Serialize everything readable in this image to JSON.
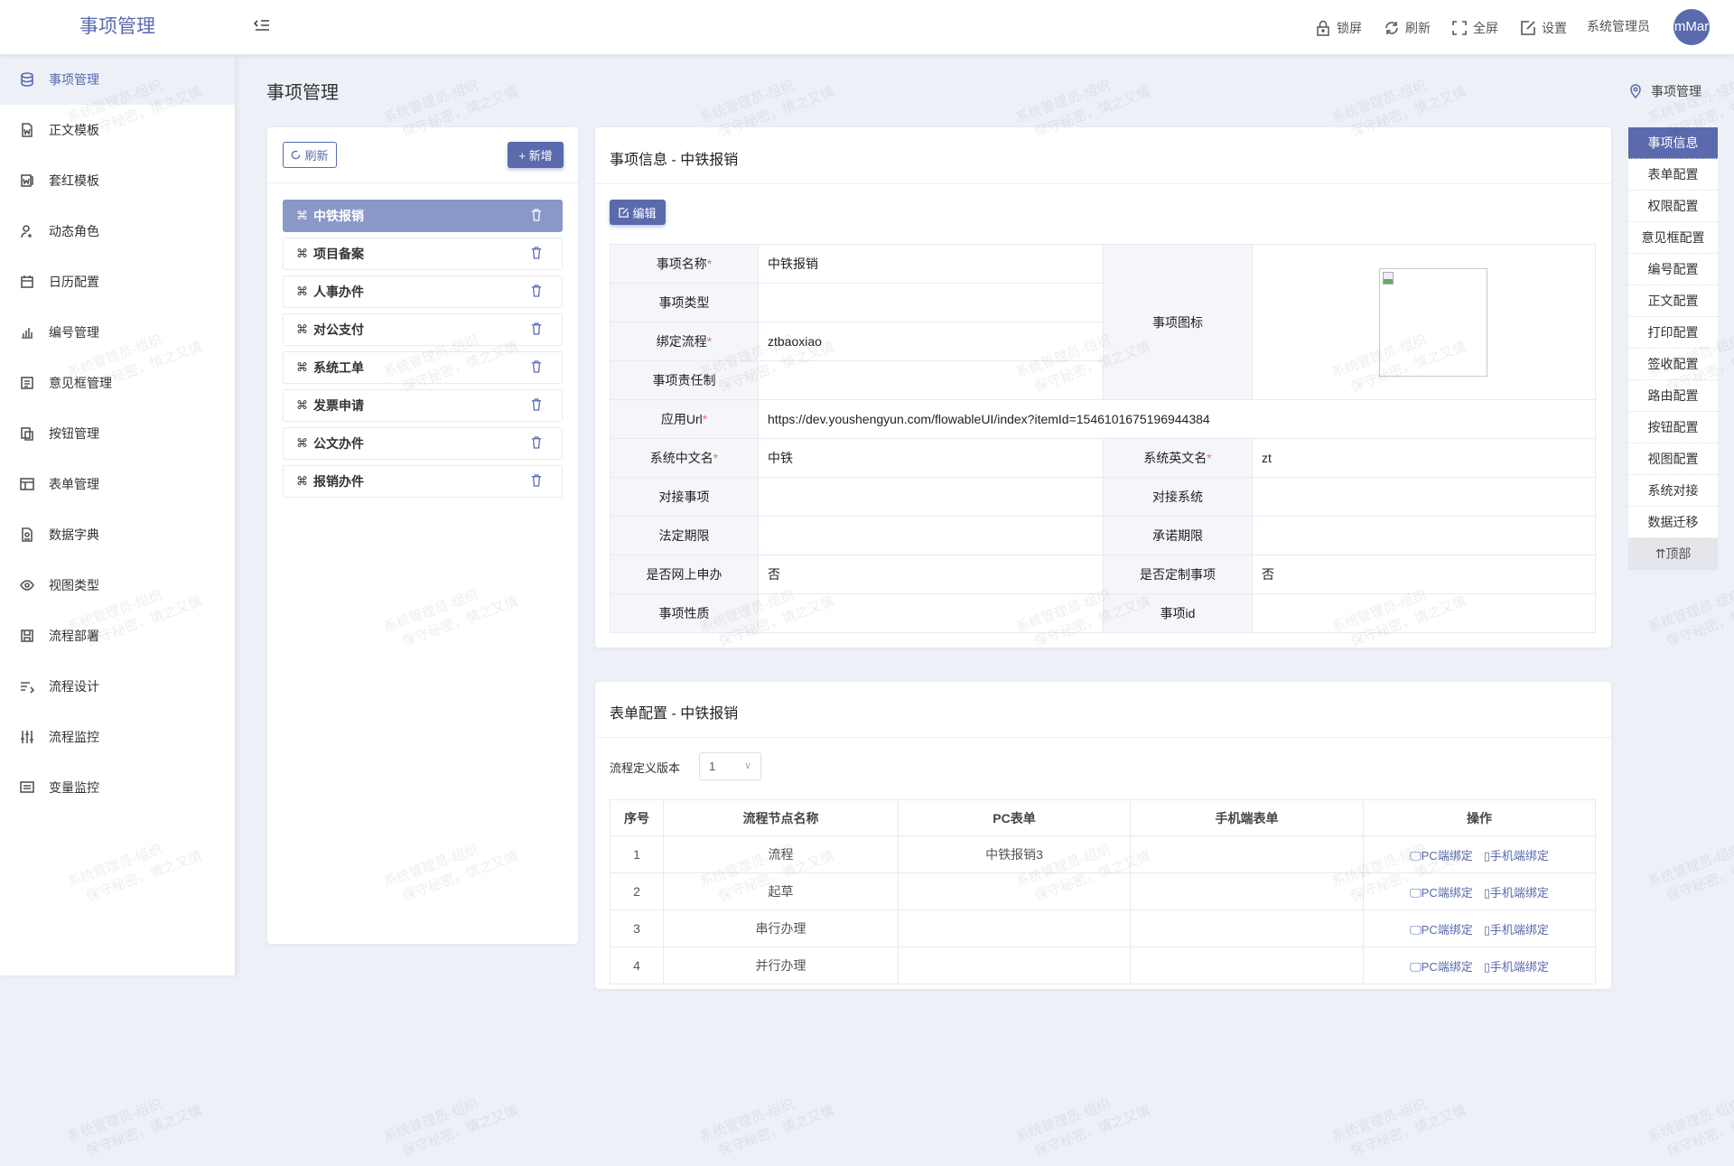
{
  "header": {
    "logo": "事项管理",
    "actions": [
      {
        "icon": "lock-icon",
        "label": "锁屏"
      },
      {
        "icon": "refresh-icon",
        "label": "刷新"
      },
      {
        "icon": "fullscreen-icon",
        "label": "全屏"
      },
      {
        "icon": "settings-icon",
        "label": "设置"
      }
    ],
    "user": "系统管理员",
    "avatar": "mMar"
  },
  "sidebar": {
    "items": [
      {
        "label": "事项管理",
        "icon": "database-icon",
        "active": true
      },
      {
        "label": "正文模板",
        "icon": "word-doc-icon"
      },
      {
        "label": "套红模板",
        "icon": "word-template-icon"
      },
      {
        "label": "动态角色",
        "icon": "user-add-icon"
      },
      {
        "label": "日历配置",
        "icon": "calendar-icon"
      },
      {
        "label": "编号管理",
        "icon": "bar-chart-icon"
      },
      {
        "label": "意见框管理",
        "icon": "comment-box-icon"
      },
      {
        "label": "按钮管理",
        "icon": "button-icon"
      },
      {
        "label": "表单管理",
        "icon": "table-icon"
      },
      {
        "label": "数据字典",
        "icon": "dictionary-icon"
      },
      {
        "label": "视图类型",
        "icon": "eye-icon"
      },
      {
        "label": "流程部署",
        "icon": "deploy-icon"
      },
      {
        "label": "流程设计",
        "icon": "design-icon"
      },
      {
        "label": "流程监控",
        "icon": "sliders-icon"
      },
      {
        "label": "变量监控",
        "icon": "monitor-icon"
      }
    ]
  },
  "page": {
    "title": "事项管理",
    "breadcrumb": "事项管理"
  },
  "list_panel": {
    "refresh": "刷新",
    "add": "+ 新增",
    "items": [
      "中铁报销",
      "项目备案",
      "人事办件",
      "对公支付",
      "系统工单",
      "发票申请",
      "公文办件",
      "报销办件"
    ],
    "active_index": 0
  },
  "info_card": {
    "title": "事项信息 - 中铁报销",
    "edit": "编辑",
    "rows": {
      "name_label": "事项名称",
      "name": "中铁报销",
      "type_label": "事项类型",
      "type": "",
      "flow_label": "绑定流程",
      "flow": "ztbaoxiao",
      "resp_label": "事项责任制",
      "resp": "",
      "icon_label": "事项图标",
      "url_label": "应用Url",
      "url": "https://dev.youshengyun.com/flowableUI/index?itemId=1546101675196944384",
      "cn_label": "系统中文名",
      "cn": "中铁",
      "en_label": "系统英文名",
      "en": "zt",
      "dock_item_label": "对接事项",
      "dock_item": "",
      "dock_sys_label": "对接系统",
      "dock_sys": "",
      "legal_label": "法定期限",
      "legal": "",
      "promise_label": "承诺期限",
      "promise": "",
      "online_label": "是否网上申办",
      "online": "否",
      "custom_label": "是否定制事项",
      "custom": "否",
      "nature_label": "事项性质",
      "nature": "",
      "id_label": "事项id",
      "id": ""
    }
  },
  "form_card": {
    "title": "表单配置 - 中铁报销",
    "version_label": "流程定义版本",
    "version": "1",
    "columns": [
      "序号",
      "流程节点名称",
      "PC表单",
      "手机端表单",
      "操作"
    ],
    "rows": [
      {
        "no": "1",
        "node": "流程",
        "pc": "中铁报销3",
        "mobile": ""
      },
      {
        "no": "2",
        "node": "起草",
        "pc": "",
        "mobile": ""
      },
      {
        "no": "3",
        "node": "串行办理",
        "pc": "",
        "mobile": ""
      },
      {
        "no": "4",
        "node": "并行办理",
        "pc": "",
        "mobile": ""
      }
    ],
    "pc_bind": "PC端绑定",
    "mobile_bind": "手机端绑定"
  },
  "right_nav": {
    "items": [
      "事项信息",
      "表单配置",
      "权限配置",
      "意见框配置",
      "编号配置",
      "正文配置",
      "打印配置",
      "签收配置",
      "路由配置",
      "按钮配置",
      "视图配置",
      "系统对接",
      "数据迁移"
    ],
    "top": "顶部"
  },
  "watermark": [
    "系统管理员-组织",
    "保守秘密，慎之又慎"
  ],
  "colors": {
    "primary": "#5a6aad",
    "bg": "#edf0f7",
    "required": "#f56c6c"
  }
}
